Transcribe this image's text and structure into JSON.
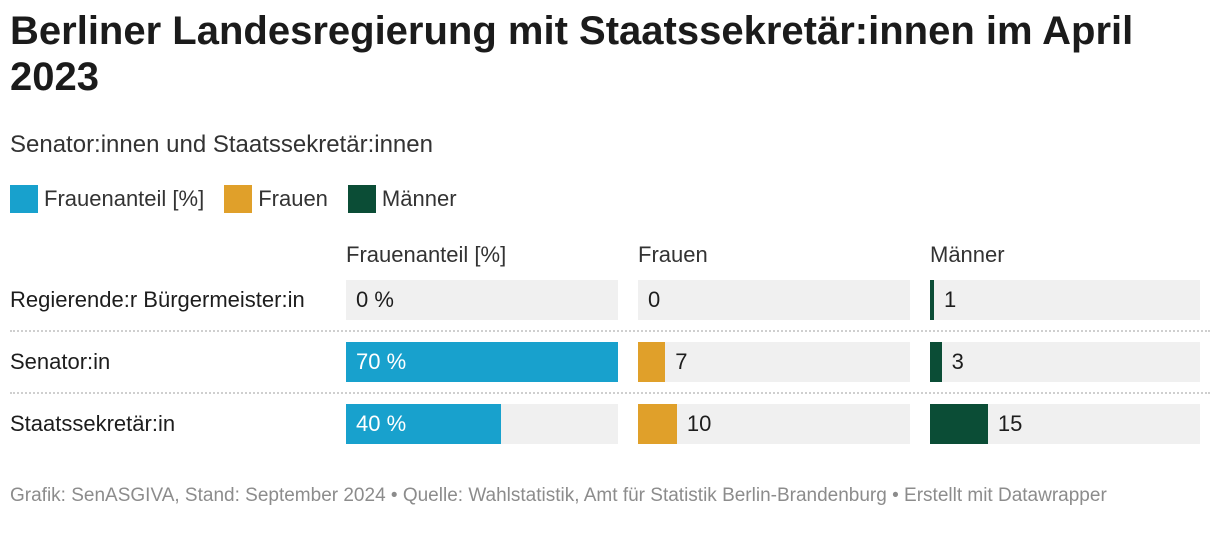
{
  "title": "Berliner Landesregierung mit Staatssekretär:innen im April 2023",
  "subtitle": "Senator:innen und Staatssekretär:innen",
  "legend": [
    {
      "label": "Frauenanteil [%]",
      "color": "#18a1cd"
    },
    {
      "label": "Frauen",
      "color": "#e0a02a"
    },
    {
      "label": "Männer",
      "color": "#0b4d36"
    }
  ],
  "footer": "Grafik: SenASGIVA, Stand: September 2024 • Quelle: Wahlstatistik, Amt für Statistik Berlin-Brandenburg • Erstellt mit Datawrapper",
  "chart_data": {
    "type": "table",
    "columns": [
      "Frauenanteil [%]",
      "Frauen",
      "Männer"
    ],
    "rows": [
      {
        "label": "Regierende:r Bürgermeister:in",
        "frauenanteil": 0,
        "frauenanteil_label": "0 %",
        "frauen": 0,
        "frauen_label": "0",
        "maenner": 1,
        "maenner_label": "1"
      },
      {
        "label": "Senator:in",
        "frauenanteil": 70,
        "frauenanteil_label": "70 %",
        "frauen": 7,
        "frauen_label": "7",
        "maenner": 3,
        "maenner_label": "3"
      },
      {
        "label": "Staatssekretär:in",
        "frauenanteil": 40,
        "frauenanteil_label": "40 %",
        "frauen": 10,
        "frauen_label": "10",
        "maenner": 15,
        "maenner_label": "15"
      }
    ],
    "scales": {
      "frauenanteil_max": 70,
      "frauen_max": 70,
      "maenner_max": 70
    }
  }
}
